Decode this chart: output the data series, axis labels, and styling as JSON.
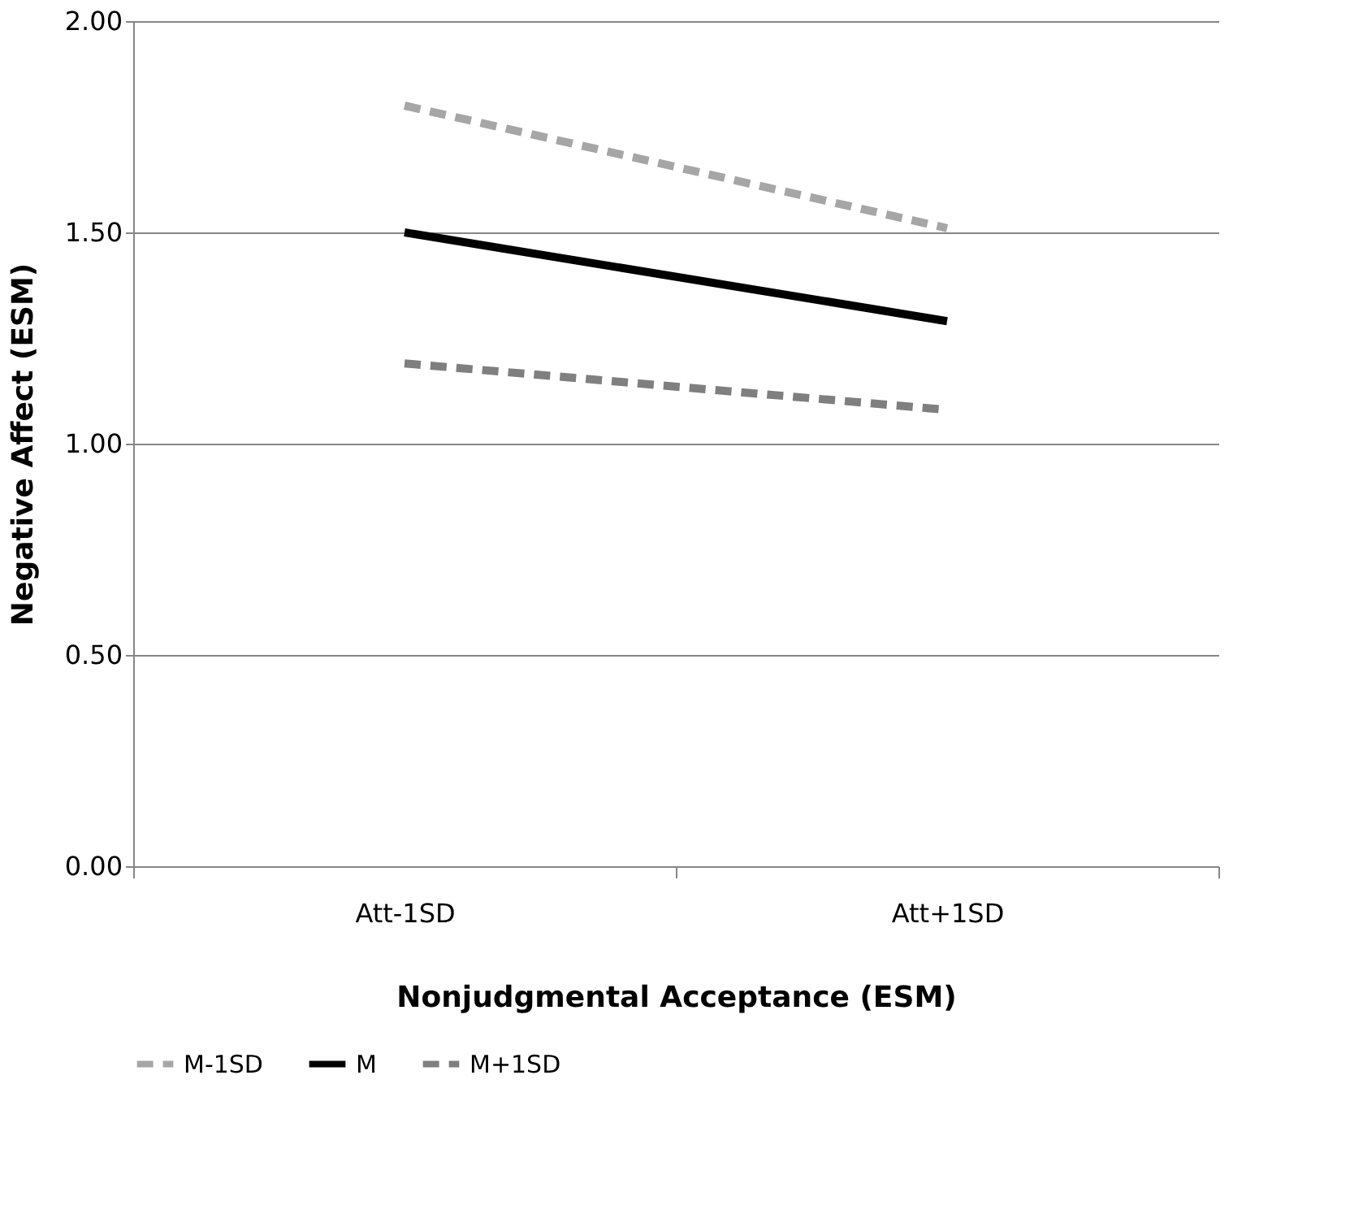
{
  "chart_data": {
    "type": "line",
    "xlabel": "Nonjudgmental Acceptance (ESM)",
    "ylabel": "Negative  Affect (ESM)",
    "categories": [
      "Att-1SD",
      "Att+1SD"
    ],
    "series": [
      {
        "name": "M-1SD",
        "color": "#a6a6a6",
        "line_style": "dashed",
        "values": [
          1.8,
          1.51
        ]
      },
      {
        "name": "M",
        "color": "#000000",
        "line_style": "solid",
        "values": [
          1.5,
          1.29
        ]
      },
      {
        "name": "M+1SD",
        "color": "#7f7f7f",
        "line_style": "dashed",
        "values": [
          1.19,
          1.08
        ]
      }
    ],
    "ylim": [
      0,
      2
    ],
    "yticks": [
      {
        "value": 0,
        "label": "0.00"
      },
      {
        "value": 0.5,
        "label": "0.50"
      },
      {
        "value": 1,
        "label": "1.00"
      },
      {
        "value": 1.5,
        "label": "1.50"
      },
      {
        "value": 2,
        "label": "2.00"
      }
    ],
    "grid": "y",
    "legend": "bottom",
    "marker": "none"
  }
}
